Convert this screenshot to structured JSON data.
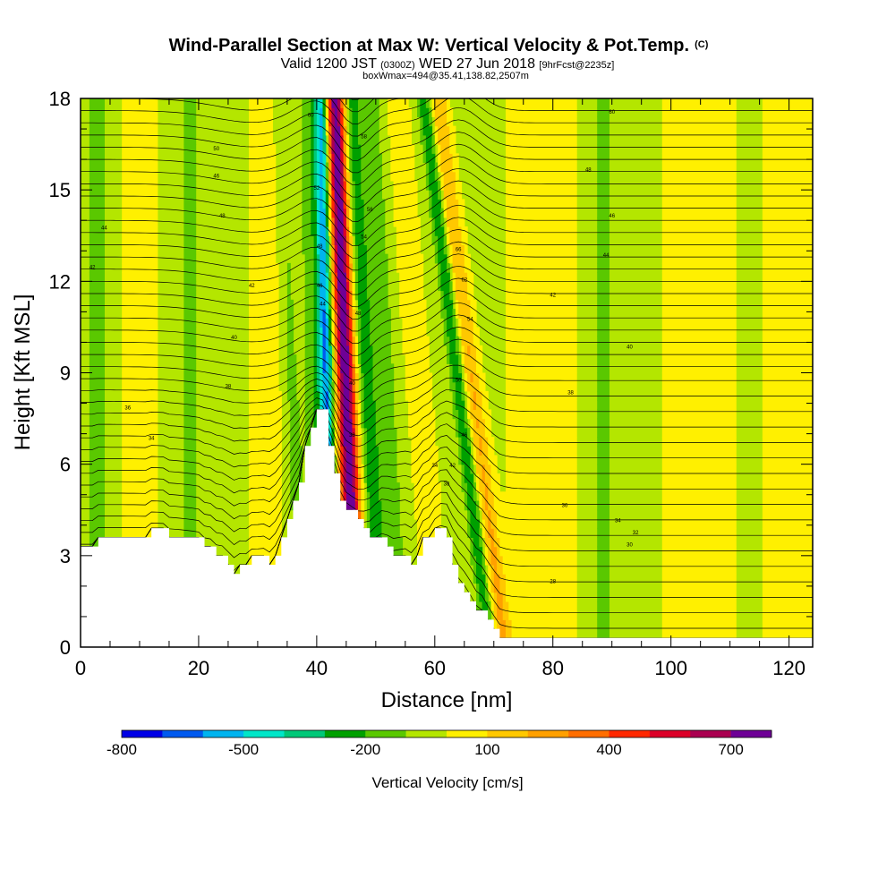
{
  "chart_data": {
    "type": "heatmap",
    "title": "Wind-Parallel Section at Max W: Vertical Velocity & Pot.Temp.",
    "title_mark": "(C)",
    "subtitle_parts": {
      "valid": "Valid 1200 JST",
      "utc": "(0300Z)",
      "date": "WED 27 Jun 2018",
      "forecast": "[9hrFcst@2235z]"
    },
    "subtitle2": "boxWmax=494@35.41,138.82,2507m",
    "xlabel": "Distance [nm]",
    "ylabel": "Height [Kft MSL]",
    "xlim": [
      0,
      124
    ],
    "ylim": [
      0,
      18
    ],
    "x_ticks": [
      0,
      20,
      40,
      60,
      80,
      100,
      120
    ],
    "y_ticks": [
      0,
      3,
      6,
      9,
      12,
      15,
      18
    ],
    "colorbar": {
      "label": "Vertical Velocity [cm/s]",
      "tick_labels": [
        "-800",
        "-500",
        "-200",
        "100",
        "400",
        "700"
      ],
      "tick_values": [
        -800,
        -500,
        -200,
        100,
        400,
        700
      ],
      "levels": [
        -800,
        -700,
        -600,
        -500,
        -400,
        -300,
        -200,
        -100,
        0,
        100,
        200,
        300,
        400,
        500,
        600,
        700,
        800
      ],
      "colors": [
        "#0000e6",
        "#005af0",
        "#00b4f0",
        "#00e6c8",
        "#00c878",
        "#00a000",
        "#5ac800",
        "#b4e600",
        "#fff000",
        "#ffc800",
        "#ffa000",
        "#ff6e00",
        "#ff2800",
        "#dc0028",
        "#aa0050",
        "#6e0096"
      ]
    },
    "terrain_kft": [
      [
        0,
        3.3
      ],
      [
        3,
        3.3
      ],
      [
        3,
        3.6
      ],
      [
        12,
        3.6
      ],
      [
        12,
        3.9
      ],
      [
        15,
        3.9
      ],
      [
        15,
        3.6
      ],
      [
        21,
        3.6
      ],
      [
        21,
        3.3
      ],
      [
        23,
        3.3
      ],
      [
        23,
        3.0
      ],
      [
        25,
        3.0
      ],
      [
        25,
        2.7
      ],
      [
        26,
        2.7
      ],
      [
        26,
        2.4
      ],
      [
        27,
        2.4
      ],
      [
        27,
        2.7
      ],
      [
        29,
        2.7
      ],
      [
        29,
        3.0
      ],
      [
        32,
        3.0
      ],
      [
        32,
        2.7
      ],
      [
        33,
        2.7
      ],
      [
        33,
        3.0
      ],
      [
        34,
        3.0
      ],
      [
        34,
        3.6
      ],
      [
        35,
        3.6
      ],
      [
        35,
        4.2
      ],
      [
        36,
        4.2
      ],
      [
        36,
        4.8
      ],
      [
        37,
        4.8
      ],
      [
        37,
        5.4
      ],
      [
        38,
        5.4
      ],
      [
        38,
        6.6
      ],
      [
        39,
        6.6
      ],
      [
        39,
        7.2
      ],
      [
        40,
        7.2
      ],
      [
        40,
        7.8
      ],
      [
        42,
        7.8
      ],
      [
        42,
        6.6
      ],
      [
        43,
        6.6
      ],
      [
        43,
        5.7
      ],
      [
        44,
        5.7
      ],
      [
        44,
        4.8
      ],
      [
        45,
        4.8
      ],
      [
        45,
        4.5
      ],
      [
        47,
        4.5
      ],
      [
        47,
        4.2
      ],
      [
        48,
        4.2
      ],
      [
        48,
        3.9
      ],
      [
        49,
        3.9
      ],
      [
        49,
        3.6
      ],
      [
        52,
        3.6
      ],
      [
        52,
        3.3
      ],
      [
        53,
        3.3
      ],
      [
        53,
        3.0
      ],
      [
        56,
        3.0
      ],
      [
        56,
        2.7
      ],
      [
        57,
        2.7
      ],
      [
        57,
        3.0
      ],
      [
        58,
        3.0
      ],
      [
        58,
        3.6
      ],
      [
        60,
        3.6
      ],
      [
        60,
        3.9
      ],
      [
        62,
        3.9
      ],
      [
        62,
        3.6
      ],
      [
        63,
        3.6
      ],
      [
        63,
        2.7
      ],
      [
        64,
        2.7
      ],
      [
        64,
        2.1
      ],
      [
        65,
        2.1
      ],
      [
        65,
        1.8
      ],
      [
        66,
        1.8
      ],
      [
        66,
        1.5
      ],
      [
        67,
        1.5
      ],
      [
        67,
        1.2
      ],
      [
        69,
        1.2
      ],
      [
        69,
        0.9
      ],
      [
        70,
        0.9
      ],
      [
        70,
        0.6
      ],
      [
        71,
        0.6
      ],
      [
        71,
        0.3
      ],
      [
        124,
        0.3
      ]
    ],
    "theta_contour_labels": [
      {
        "x": 4,
        "y": 13.7,
        "text": "44"
      },
      {
        "x": 2,
        "y": 12.4,
        "text": "42"
      },
      {
        "x": 29,
        "y": 11.8,
        "text": "42"
      },
      {
        "x": 26,
        "y": 10.1,
        "text": "40"
      },
      {
        "x": 25,
        "y": 8.5,
        "text": "38"
      },
      {
        "x": 8,
        "y": 7.8,
        "text": "36"
      },
      {
        "x": 12,
        "y": 6.8,
        "text": "34"
      },
      {
        "x": 23,
        "y": 15.4,
        "text": "46"
      },
      {
        "x": 24,
        "y": 14.1,
        "text": "48"
      },
      {
        "x": 23,
        "y": 16.3,
        "text": "50"
      },
      {
        "x": 39,
        "y": 17.4,
        "text": "60"
      },
      {
        "x": 40,
        "y": 15.0,
        "text": "52"
      },
      {
        "x": 40.5,
        "y": 13.1,
        "text": "48"
      },
      {
        "x": 40.5,
        "y": 11.8,
        "text": "46"
      },
      {
        "x": 41,
        "y": 11.2,
        "text": "44"
      },
      {
        "x": 48,
        "y": 16.7,
        "text": "58"
      },
      {
        "x": 49,
        "y": 14.3,
        "text": "56"
      },
      {
        "x": 48,
        "y": 13.4,
        "text": "54"
      },
      {
        "x": 47,
        "y": 10.9,
        "text": "48"
      },
      {
        "x": 46,
        "y": 8.6,
        "text": "40"
      },
      {
        "x": 46,
        "y": 6.9,
        "text": "38"
      },
      {
        "x": 64,
        "y": 13.0,
        "text": "66"
      },
      {
        "x": 65,
        "y": 12.0,
        "text": "62"
      },
      {
        "x": 66,
        "y": 10.7,
        "text": "54"
      },
      {
        "x": 64,
        "y": 8.7,
        "text": "50"
      },
      {
        "x": 65,
        "y": 6.9,
        "text": "46"
      },
      {
        "x": 63,
        "y": 5.9,
        "text": "42"
      },
      {
        "x": 60,
        "y": 5.9,
        "text": "34"
      },
      {
        "x": 62,
        "y": 5.3,
        "text": "38"
      },
      {
        "x": 90,
        "y": 17.5,
        "text": "60"
      },
      {
        "x": 86,
        "y": 15.6,
        "text": "48"
      },
      {
        "x": 90,
        "y": 14.1,
        "text": "46"
      },
      {
        "x": 89,
        "y": 12.8,
        "text": "44"
      },
      {
        "x": 80,
        "y": 11.5,
        "text": "42"
      },
      {
        "x": 93,
        "y": 9.8,
        "text": "40"
      },
      {
        "x": 83,
        "y": 8.3,
        "text": "38"
      },
      {
        "x": 82,
        "y": 4.6,
        "text": "36"
      },
      {
        "x": 91,
        "y": 4.1,
        "text": "34"
      },
      {
        "x": 94,
        "y": 3.7,
        "text": "32"
      },
      {
        "x": 93,
        "y": 3.3,
        "text": "30"
      },
      {
        "x": 80,
        "y": 2.1,
        "text": "28"
      }
    ]
  }
}
